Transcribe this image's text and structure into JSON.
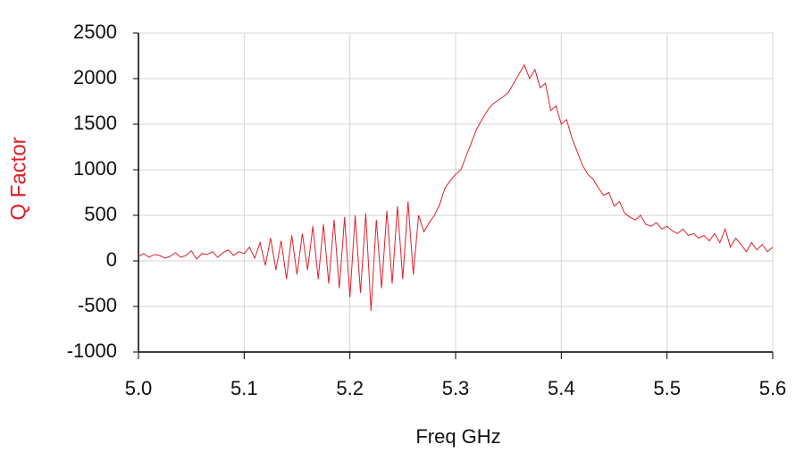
{
  "chart_data": {
    "type": "line",
    "x_label": "Freq GHz",
    "y_label": "Q Factor",
    "xlim": [
      5.0,
      5.6
    ],
    "xticks": [
      {
        "value": 5.0,
        "label": "5.0"
      },
      5.1,
      5.2,
      5.3,
      5.4,
      5.5,
      5.6
    ],
    "ylim": [
      -1000,
      2500
    ],
    "yticks": [
      -1000,
      -500,
      0,
      500,
      1000,
      1500,
      2000,
      2500
    ],
    "grid": true,
    "series": [
      {
        "color": "#e0202a",
        "x": [
          5.0,
          5.005,
          5.01,
          5.015,
          5.02,
          5.025,
          5.03,
          5.035,
          5.04,
          5.045,
          5.05,
          5.055,
          5.06,
          5.065,
          5.07,
          5.075,
          5.08,
          5.085,
          5.09,
          5.095,
          5.1,
          5.105,
          5.11,
          5.115,
          5.12,
          5.125,
          5.13,
          5.135,
          5.14,
          5.145,
          5.15,
          5.155,
          5.16,
          5.165,
          5.17,
          5.175,
          5.18,
          5.185,
          5.19,
          5.195,
          5.2,
          5.205,
          5.21,
          5.215,
          5.22,
          5.225,
          5.23,
          5.235,
          5.24,
          5.245,
          5.25,
          5.255,
          5.26,
          5.265,
          5.27,
          5.275,
          5.28,
          5.285,
          5.29,
          5.295,
          5.3,
          5.305,
          5.31,
          5.315,
          5.32,
          5.325,
          5.33,
          5.335,
          5.34,
          5.345,
          5.35,
          5.355,
          5.36,
          5.365,
          5.37,
          5.375,
          5.38,
          5.385,
          5.39,
          5.395,
          5.4,
          5.405,
          5.41,
          5.415,
          5.42,
          5.425,
          5.43,
          5.435,
          5.44,
          5.445,
          5.45,
          5.455,
          5.46,
          5.465,
          5.47,
          5.475,
          5.48,
          5.485,
          5.49,
          5.495,
          5.5,
          5.505,
          5.51,
          5.515,
          5.52,
          5.525,
          5.53,
          5.535,
          5.54,
          5.545,
          5.55,
          5.555,
          5.56,
          5.565,
          5.57,
          5.575,
          5.58,
          5.585,
          5.59,
          5.595,
          5.6
        ],
        "values": [
          50,
          80,
          40,
          70,
          60,
          30,
          50,
          90,
          40,
          60,
          110,
          20,
          80,
          70,
          100,
          40,
          90,
          120,
          60,
          100,
          80,
          150,
          30,
          200,
          -50,
          250,
          -100,
          220,
          -200,
          280,
          -150,
          300,
          -100,
          380,
          -200,
          400,
          -250,
          450,
          -300,
          480,
          -400,
          500,
          -350,
          520,
          -550,
          450,
          -300,
          550,
          -250,
          600,
          -200,
          650,
          -150,
          500,
          320,
          420,
          500,
          620,
          800,
          880,
          950,
          1000,
          1150,
          1300,
          1450,
          1550,
          1650,
          1720,
          1760,
          1800,
          1850,
          1950,
          2050,
          2150,
          2000,
          2100,
          1900,
          1950,
          1650,
          1700,
          1500,
          1550,
          1350,
          1200,
          1050,
          950,
          900,
          800,
          720,
          750,
          600,
          650,
          520,
          480,
          450,
          500,
          400,
          380,
          420,
          350,
          380,
          330,
          300,
          350,
          280,
          300,
          250,
          280,
          220,
          300,
          200,
          350,
          150,
          250,
          180,
          100,
          200,
          120,
          180,
          100,
          150
        ]
      }
    ]
  }
}
